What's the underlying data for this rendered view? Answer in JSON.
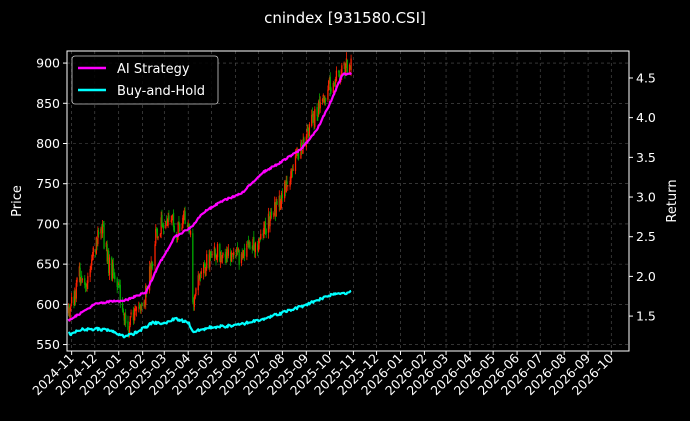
{
  "chart_data": {
    "type": "line",
    "title": "cnindex [931580.CSI]",
    "xlabel": "",
    "ylabel": "Price",
    "y2label": "Return",
    "x_ticks": [
      "2024-11",
      "2024-12",
      "2025-01",
      "2025-02",
      "2025-03",
      "2025-04",
      "2025-05",
      "2025-06",
      "2025-07",
      "2025-08",
      "2025-09",
      "2025-10",
      "2025-11",
      "2025-12",
      "2026-01",
      "2026-02",
      "2026-03",
      "2026-04",
      "2026-05",
      "2026-06",
      "2026-07",
      "2026-08",
      "2026-09",
      "2026-10"
    ],
    "xlim": [
      "2024-10-26",
      "2026-10-24"
    ],
    "ylim": [
      542,
      915
    ],
    "y_ticks": [
      550,
      600,
      650,
      700,
      750,
      800,
      850,
      900
    ],
    "y2lim": [
      1.06,
      4.84
    ],
    "y2_ticks": [
      1.5,
      2.0,
      2.5,
      3.0,
      3.5,
      4.0,
      4.5
    ],
    "grid": true,
    "legend": {
      "position": "top-left",
      "entries": [
        "AI Strategy",
        "Buy-and-Hold"
      ]
    },
    "colors": {
      "up": "#ff2200",
      "down": "#00aa00",
      "ai_strategy": "#ff00ff",
      "buy_and_hold": "#00ffff",
      "grid": "#555555"
    },
    "price_anchors": [
      {
        "date": "2024-10-28",
        "value": 590
      },
      {
        "date": "2024-11-05",
        "value": 605
      },
      {
        "date": "2024-11-12",
        "value": 640
      },
      {
        "date": "2024-11-20",
        "value": 630
      },
      {
        "date": "2024-11-28",
        "value": 650
      },
      {
        "date": "2024-12-05",
        "value": 680
      },
      {
        "date": "2024-12-12",
        "value": 690
      },
      {
        "date": "2024-12-20",
        "value": 650
      },
      {
        "date": "2024-12-31",
        "value": 630
      },
      {
        "date": "2025-01-08",
        "value": 585
      },
      {
        "date": "2025-01-15",
        "value": 570
      },
      {
        "date": "2025-01-25",
        "value": 600
      },
      {
        "date": "2025-02-05",
        "value": 610
      },
      {
        "date": "2025-02-12",
        "value": 640
      },
      {
        "date": "2025-02-20",
        "value": 690
      },
      {
        "date": "2025-03-01",
        "value": 700
      },
      {
        "date": "2025-03-10",
        "value": 715
      },
      {
        "date": "2025-03-18",
        "value": 690
      },
      {
        "date": "2025-03-28",
        "value": 705
      },
      {
        "date": "2025-04-05",
        "value": 680
      },
      {
        "date": "2025-04-08",
        "value": 605
      },
      {
        "date": "2025-04-15",
        "value": 625
      },
      {
        "date": "2025-04-25",
        "value": 650
      },
      {
        "date": "2025-05-10",
        "value": 665
      },
      {
        "date": "2025-05-25",
        "value": 665
      },
      {
        "date": "2025-06-10",
        "value": 660
      },
      {
        "date": "2025-06-25",
        "value": 670
      },
      {
        "date": "2025-07-05",
        "value": 685
      },
      {
        "date": "2025-07-20",
        "value": 710
      },
      {
        "date": "2025-08-05",
        "value": 740
      },
      {
        "date": "2025-08-15",
        "value": 770
      },
      {
        "date": "2025-08-25",
        "value": 790
      },
      {
        "date": "2025-09-05",
        "value": 815
      },
      {
        "date": "2025-09-15",
        "value": 840
      },
      {
        "date": "2025-09-25",
        "value": 860
      },
      {
        "date": "2025-10-08",
        "value": 880
      },
      {
        "date": "2025-10-20",
        "value": 895
      },
      {
        "date": "2025-10-29",
        "value": 895
      }
    ],
    "series": [
      {
        "name": "AI Strategy",
        "axis": "right",
        "points": [
          {
            "date": "2024-10-28",
            "value": 1.45
          },
          {
            "date": "2024-11-15",
            "value": 1.55
          },
          {
            "date": "2024-12-01",
            "value": 1.65
          },
          {
            "date": "2024-12-20",
            "value": 1.68
          },
          {
            "date": "2025-01-10",
            "value": 1.7
          },
          {
            "date": "2025-02-05",
            "value": 1.8
          },
          {
            "date": "2025-02-25",
            "value": 2.2
          },
          {
            "date": "2025-03-15",
            "value": 2.5
          },
          {
            "date": "2025-04-05",
            "value": 2.62
          },
          {
            "date": "2025-04-20",
            "value": 2.8
          },
          {
            "date": "2025-05-15",
            "value": 2.95
          },
          {
            "date": "2025-06-10",
            "value": 3.05
          },
          {
            "date": "2025-07-05",
            "value": 3.3
          },
          {
            "date": "2025-08-01",
            "value": 3.45
          },
          {
            "date": "2025-08-25",
            "value": 3.6
          },
          {
            "date": "2025-09-15",
            "value": 3.85
          },
          {
            "date": "2025-10-05",
            "value": 4.25
          },
          {
            "date": "2025-10-18",
            "value": 4.55
          },
          {
            "date": "2025-10-29",
            "value": 4.55
          }
        ]
      },
      {
        "name": "Buy-and-Hold",
        "axis": "right",
        "points": [
          {
            "date": "2024-10-28",
            "value": 1.27
          },
          {
            "date": "2024-11-15",
            "value": 1.33
          },
          {
            "date": "2024-12-05",
            "value": 1.34
          },
          {
            "date": "2024-12-20",
            "value": 1.32
          },
          {
            "date": "2025-01-10",
            "value": 1.24
          },
          {
            "date": "2025-01-25",
            "value": 1.3
          },
          {
            "date": "2025-02-15",
            "value": 1.42
          },
          {
            "date": "2025-03-01",
            "value": 1.4
          },
          {
            "date": "2025-03-15",
            "value": 1.47
          },
          {
            "date": "2025-04-01",
            "value": 1.42
          },
          {
            "date": "2025-04-08",
            "value": 1.3
          },
          {
            "date": "2025-05-01",
            "value": 1.36
          },
          {
            "date": "2025-06-01",
            "value": 1.38
          },
          {
            "date": "2025-07-01",
            "value": 1.45
          },
          {
            "date": "2025-08-01",
            "value": 1.54
          },
          {
            "date": "2025-08-25",
            "value": 1.62
          },
          {
            "date": "2025-09-15",
            "value": 1.7
          },
          {
            "date": "2025-10-05",
            "value": 1.78
          },
          {
            "date": "2025-10-29",
            "value": 1.8
          }
        ]
      }
    ]
  }
}
